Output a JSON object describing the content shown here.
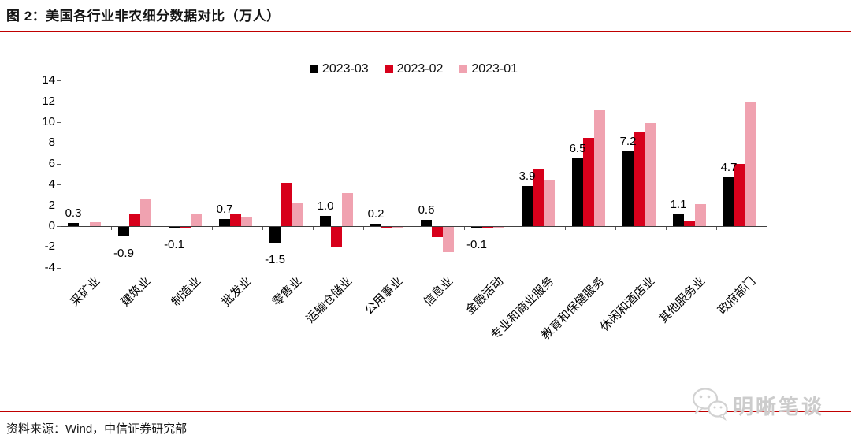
{
  "header": {
    "title": "图 2：美国各行业非农细分数据对比（万人）"
  },
  "footer": {
    "source": "资料来源：Wind，中信证券研究部",
    "watermark": "明晰笔谈"
  },
  "colors": {
    "accent_red": "#c00000",
    "bar_black": "#000000",
    "bar_red": "#d7001b",
    "bar_pink": "#f0a2b0",
    "axis_gray": "#595959",
    "watermark_gray": "#cccccc"
  },
  "chart_data": {
    "type": "bar",
    "title": "美国各行业非农细分数据对比（万人）",
    "unit": "万人",
    "categories": [
      "采矿业",
      "建筑业",
      "制造业",
      "批发业",
      "零售业",
      "运输仓储业",
      "公用事业",
      "信息业",
      "金融活动",
      "专业和商业服务",
      "教育和保健服务",
      "休闲和酒店业",
      "其他服务业",
      "政府部门"
    ],
    "series": [
      {
        "name": "2023-03",
        "color": "#000000",
        "values": [
          0.3,
          -0.9,
          -0.1,
          0.7,
          -1.5,
          1.0,
          0.2,
          0.6,
          -0.1,
          3.9,
          6.5,
          7.2,
          1.1,
          4.7
        ]
      },
      {
        "name": "2023-02",
        "color": "#d7001b",
        "values": [
          0.0,
          1.2,
          -0.1,
          1.1,
          4.2,
          -2.0,
          -0.1,
          -1.0,
          -0.1,
          5.5,
          8.5,
          9.0,
          0.5,
          6.0
        ]
      },
      {
        "name": "2023-01",
        "color": "#f0a2b0",
        "values": [
          0.4,
          2.6,
          1.1,
          0.8,
          2.3,
          3.2,
          -0.1,
          -2.4,
          -0.1,
          4.4,
          11.1,
          9.9,
          2.1,
          11.9
        ]
      }
    ],
    "data_labels": [
      "0.3",
      "-0.9",
      "-0.1",
      "0.7",
      "-1.5",
      "1.0",
      "0.2",
      "0.6",
      "-0.1",
      "3.9",
      "6.5",
      "7.2",
      "1.1",
      "4.7"
    ],
    "data_label_series": "2023-03",
    "ylim": [
      -4,
      14
    ],
    "ytick_step": 2,
    "legend_position": "top",
    "grid": false
  }
}
